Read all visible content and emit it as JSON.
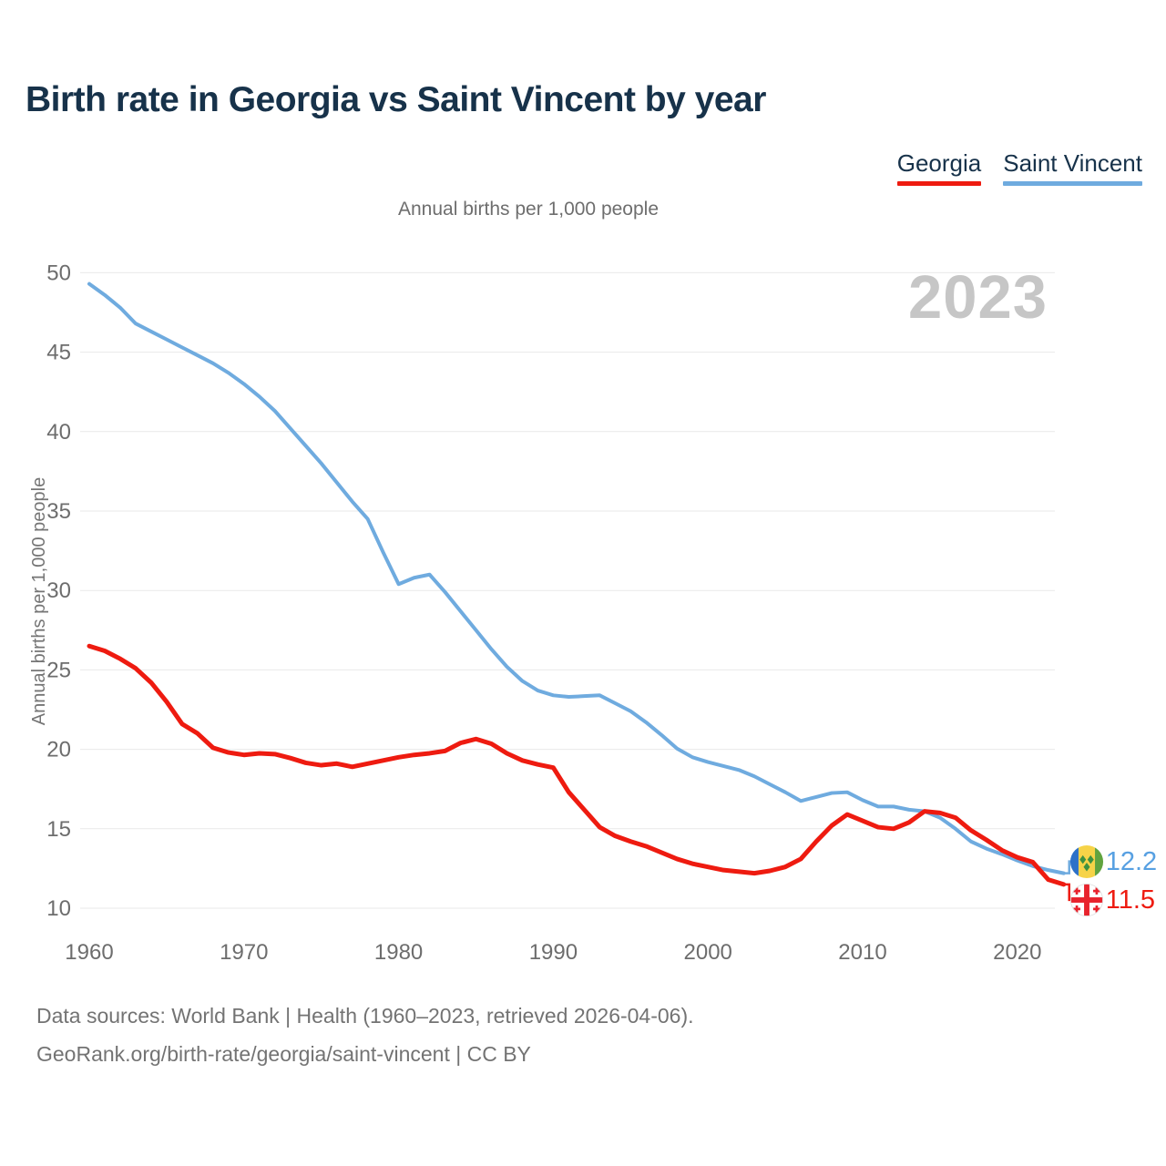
{
  "title": "Birth rate in Georgia vs Saint Vincent by year",
  "subtitle": "Annual births per 1,000 people",
  "y_axis_title": "Annual births per 1,000 people",
  "watermark": "2023",
  "legend": [
    {
      "label": "Georgia",
      "color": "#ee1b10"
    },
    {
      "label": "Saint Vincent",
      "color": "#6fabdf"
    }
  ],
  "end_labels": {
    "saint_vincent": {
      "value": "12.2",
      "color": "#57a0e2",
      "flag": "saint-vincent-flag"
    },
    "georgia": {
      "value": "11.5",
      "color": "#ee1b10",
      "flag": "georgia-flag"
    }
  },
  "footer": {
    "line1": "Data sources: World Bank | Health (1960–2023, retrieved 2026-04-06).",
    "line2": "GeoRank.org/birth-rate/georgia/saint-vincent | CC BY"
  },
  "chart_data": {
    "type": "line",
    "title": "Birth rate in Georgia vs Saint Vincent by year",
    "ylabel": "Annual births per 1,000 people",
    "xlim": [
      1960,
      2023
    ],
    "ylim": [
      10,
      50
    ],
    "grid": true,
    "legend_position": "top-right",
    "x_ticks": [
      1960,
      1970,
      1980,
      1990,
      2000,
      2010,
      2020
    ],
    "y_ticks": [
      10,
      15,
      20,
      25,
      30,
      35,
      40,
      45,
      50
    ],
    "years": [
      1960,
      1961,
      1962,
      1963,
      1964,
      1965,
      1966,
      1967,
      1968,
      1969,
      1970,
      1971,
      1972,
      1973,
      1974,
      1975,
      1976,
      1977,
      1978,
      1979,
      1980,
      1981,
      1982,
      1983,
      1984,
      1985,
      1986,
      1987,
      1988,
      1989,
      1990,
      1991,
      1992,
      1993,
      1994,
      1995,
      1996,
      1997,
      1998,
      1999,
      2000,
      2001,
      2002,
      2003,
      2004,
      2005,
      2006,
      2007,
      2008,
      2009,
      2010,
      2011,
      2012,
      2013,
      2014,
      2015,
      2016,
      2017,
      2018,
      2019,
      2020,
      2021,
      2022,
      2023
    ],
    "series": [
      {
        "name": "Georgia",
        "color": "#ee1b10",
        "values": [
          26.5,
          26.2,
          25.7,
          25.1,
          24.2,
          23.0,
          21.6,
          21.0,
          20.1,
          19.8,
          19.65,
          19.75,
          19.7,
          19.45,
          19.15,
          19.0,
          19.1,
          18.9,
          19.1,
          19.3,
          19.5,
          19.65,
          19.75,
          19.9,
          20.4,
          20.65,
          20.35,
          19.75,
          19.3,
          19.05,
          18.85,
          17.3,
          16.2,
          15.1,
          14.55,
          14.2,
          13.9,
          13.5,
          13.1,
          12.8,
          12.6,
          12.4,
          12.3,
          12.2,
          12.35,
          12.6,
          13.1,
          14.2,
          15.2,
          15.9,
          15.5,
          15.1,
          15.0,
          15.4,
          16.1,
          16.0,
          15.7,
          14.9,
          14.3,
          13.65,
          13.2,
          12.9,
          11.8,
          11.5
        ]
      },
      {
        "name": "Saint Vincent",
        "color": "#6fabdf",
        "values": [
          49.3,
          48.6,
          47.8,
          46.8,
          46.3,
          45.8,
          45.3,
          44.8,
          44.3,
          43.7,
          43.0,
          42.2,
          41.3,
          40.2,
          39.1,
          38.0,
          36.8,
          35.6,
          34.5,
          32.4,
          30.4,
          30.8,
          31.0,
          29.9,
          28.7,
          27.5,
          26.3,
          25.2,
          24.3,
          23.7,
          23.4,
          23.3,
          23.35,
          23.4,
          22.9,
          22.4,
          21.7,
          20.9,
          20.05,
          19.5,
          19.2,
          18.95,
          18.7,
          18.3,
          17.8,
          17.3,
          16.75,
          17.0,
          17.25,
          17.3,
          16.8,
          16.4,
          16.4,
          16.2,
          16.1,
          15.7,
          15.0,
          14.2,
          13.75,
          13.4,
          13.0,
          12.65,
          12.4,
          12.2
        ]
      }
    ]
  }
}
